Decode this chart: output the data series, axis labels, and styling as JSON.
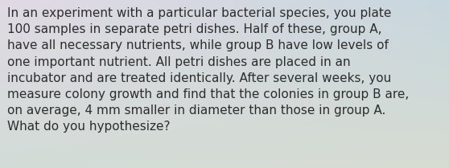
{
  "text": "In an experiment with a particular bacterial species, you plate\n100 samples in separate petri dishes. Half of these, group A,\nhave all necessary nutrients, while group B have low levels of\none important nutrient. All petri dishes are placed in an\nincubator and are treated identically. After several weeks, you\nmeasure colony growth and find that the colonies in group B are,\non average, 4 mm smaller in diameter than those in group A.\nWhat do you hypothesize?",
  "text_color": "#2d2d2d",
  "font_size": 11.0,
  "tl": [
    225,
    218,
    228
  ],
  "tr": [
    200,
    215,
    222
  ],
  "bl": [
    210,
    220,
    215
  ],
  "br": [
    215,
    220,
    210
  ],
  "fig_width": 5.58,
  "fig_height": 2.09,
  "dpi": 100
}
